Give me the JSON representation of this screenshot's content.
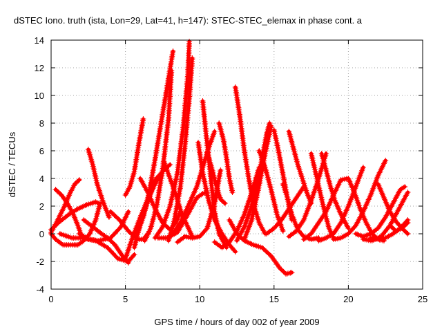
{
  "chart_data": {
    "type": "scatter",
    "title": "dSTEC Iono. truth (ista, Lon=29, Lat=41, h=147): STEC-STEC_elemax in phase cont. a",
    "xlabel": "GPS time / hours of day 002 of year 2009",
    "ylabel": "dSTEC  / TECUs",
    "xlim": [
      0,
      25
    ],
    "ylim": [
      -4,
      14
    ],
    "xticks": [
      0,
      5,
      10,
      15,
      20,
      25
    ],
    "yticks": [
      -4,
      -2,
      0,
      2,
      4,
      6,
      8,
      10,
      12,
      14
    ],
    "grid": true,
    "marker": "+",
    "color": "#ff0000",
    "series": [
      {
        "x": [
          0.0,
          0.3,
          0.8,
          1.3,
          1.8,
          2.2,
          2.6,
          3.0,
          3.3
        ],
        "y": [
          0.0,
          -0.4,
          -0.8,
          -0.8,
          -0.8,
          -0.5,
          0.0,
          1.0,
          2.2
        ]
      },
      {
        "x": [
          0.3,
          0.7,
          1.1,
          1.5,
          1.8,
          2.0
        ],
        "y": [
          3.2,
          2.8,
          2.2,
          1.4,
          0.6,
          0.0
        ]
      },
      {
        "x": [
          0.0,
          0.4,
          0.9,
          1.3,
          1.6,
          1.9
        ],
        "y": [
          0.1,
          0.9,
          2.0,
          3.0,
          3.6,
          3.9
        ]
      },
      {
        "x": [
          0.0,
          0.6,
          1.2,
          1.8,
          2.4,
          3.0,
          3.2
        ],
        "y": [
          0.3,
          0.9,
          1.4,
          1.8,
          2.1,
          2.3,
          2.2
        ]
      },
      {
        "x": [
          2.5,
          2.8,
          3.1,
          3.5,
          3.9
        ],
        "y": [
          6.1,
          5.0,
          3.6,
          2.3,
          1.2
        ]
      },
      {
        "x": [
          2.2,
          2.8,
          3.4,
          3.8,
          4.3,
          4.8,
          5.2
        ],
        "y": [
          1.0,
          0.5,
          0.0,
          -0.3,
          -0.8,
          -1.6,
          -2.1
        ]
      },
      {
        "x": [
          0.6,
          1.4,
          2.2,
          3.0,
          3.8,
          4.5,
          5.2,
          5.6
        ],
        "y": [
          0.0,
          -0.3,
          -0.3,
          -0.5,
          -1.0,
          -1.8,
          -2.0,
          -1.5
        ]
      },
      {
        "x": [
          1.9,
          2.5,
          3.2,
          4.0,
          4.7,
          5.2
        ],
        "y": [
          0.0,
          -0.4,
          -0.5,
          -0.3,
          0.5,
          1.6
        ]
      },
      {
        "x": [
          4.0,
          4.6,
          5.2,
          5.8,
          6.2,
          6.5
        ],
        "y": [
          1.6,
          1.0,
          0.2,
          -0.4,
          -0.4,
          0.0
        ]
      },
      {
        "x": [
          5.0,
          5.5,
          6.0,
          6.5,
          7.0,
          7.5
        ],
        "y": [
          -1.8,
          -0.2,
          1.2,
          2.5,
          3.6,
          4.5
        ]
      },
      {
        "x": [
          5.0,
          5.3,
          5.6,
          5.9,
          6.2
        ],
        "y": [
          2.8,
          3.4,
          4.5,
          6.5,
          8.3
        ]
      },
      {
        "x": [
          5.6,
          6.0,
          6.5,
          7.0,
          7.5,
          8.0
        ],
        "y": [
          -1.0,
          0.8,
          2.3,
          3.9,
          4.5,
          5.0
        ]
      },
      {
        "x": [
          6.0,
          6.5,
          7.0,
          7.5,
          8.0,
          8.4,
          8.7
        ],
        "y": [
          4.0,
          3.0,
          1.8,
          0.8,
          0.3,
          0.8,
          1.6
        ]
      },
      {
        "x": [
          5.8,
          6.2,
          6.6,
          7.0,
          7.4,
          7.8,
          8.2
        ],
        "y": [
          0.0,
          1.2,
          3.0,
          5.4,
          8.0,
          10.6,
          13.2
        ]
      },
      {
        "x": [
          6.3,
          6.7,
          7.1,
          7.5,
          7.9,
          8.1
        ],
        "y": [
          -0.5,
          0.4,
          2.0,
          4.6,
          8.3,
          11.8
        ]
      },
      {
        "x": [
          7.0,
          7.5,
          8.0,
          8.5,
          8.9,
          9.2,
          9.3
        ],
        "y": [
          -0.3,
          0.5,
          2.0,
          4.4,
          7.8,
          11.5,
          13.9
        ]
      },
      {
        "x": [
          7.9,
          8.3,
          8.7,
          9.0,
          9.3,
          9.5
        ],
        "y": [
          -0.5,
          1.0,
          3.4,
          6.3,
          9.8,
          12.7
        ]
      },
      {
        "x": [
          8.2,
          8.8,
          9.3,
          9.8,
          10.2,
          10.6,
          11.0
        ],
        "y": [
          0.0,
          1.0,
          2.2,
          3.4,
          4.8,
          6.2,
          7.4
        ]
      },
      {
        "x": [
          8.5,
          9.0,
          9.5,
          10.0,
          10.5,
          11.0,
          11.4
        ],
        "y": [
          -0.6,
          -0.2,
          -0.3,
          -0.2,
          0.4,
          2.2,
          4.6
        ]
      },
      {
        "x": [
          7.6,
          8.0,
          8.4,
          8.8,
          9.2,
          9.5
        ],
        "y": [
          5.2,
          4.0,
          2.8,
          1.4,
          0.5,
          -0.2
        ]
      },
      {
        "x": [
          7.2,
          7.8,
          8.5,
          9.2,
          9.8,
          10.2,
          10.5
        ],
        "y": [
          -0.3,
          -0.3,
          0.1,
          1.4,
          2.6,
          2.9,
          3.0
        ]
      },
      {
        "x": [
          10.2,
          10.4,
          10.6,
          10.8,
          11.0,
          11.3,
          11.8
        ],
        "y": [
          9.6,
          7.5,
          5.5,
          3.5,
          1.6,
          0.0,
          -1.0
        ]
      },
      {
        "x": [
          9.9,
          10.2,
          10.6,
          11.0,
          11.5,
          12.0,
          12.4
        ],
        "y": [
          6.6,
          4.4,
          2.4,
          1.0,
          0.0,
          -0.8,
          -1.3
        ]
      },
      {
        "x": [
          10.5,
          10.8,
          11.1,
          11.4,
          11.7
        ],
        "y": [
          5.9,
          4.8,
          3.5,
          2.5,
          2.2
        ]
      },
      {
        "x": [
          11.3,
          11.6,
          11.8,
          12.0,
          12.2
        ],
        "y": [
          8.0,
          6.8,
          5.5,
          4.0,
          3.0
        ]
      },
      {
        "x": [
          11.0,
          11.5,
          12.0,
          12.5,
          13.0,
          13.5,
          14.0
        ],
        "y": [
          -0.6,
          -1.0,
          -0.6,
          0.2,
          1.4,
          3.0,
          4.8
        ]
      },
      {
        "x": [
          12.4,
          12.7,
          13.0,
          13.3,
          13.6,
          14.0,
          14.4
        ],
        "y": [
          10.6,
          8.5,
          6.0,
          4.0,
          2.2,
          0.8,
          0.0
        ]
      },
      {
        "x": [
          12.0,
          12.5,
          13.0,
          13.6,
          14.2,
          14.8,
          15.4,
          15.8,
          16.2
        ],
        "y": [
          1.0,
          0.0,
          -0.5,
          -0.8,
          -1.0,
          -1.6,
          -2.5,
          -2.9,
          -2.8
        ]
      },
      {
        "x": [
          12.5,
          13.0,
          13.5,
          13.9,
          14.2,
          14.5,
          14.7
        ],
        "y": [
          -0.5,
          0.5,
          2.0,
          3.8,
          5.5,
          7.2,
          8.0
        ]
      },
      {
        "x": [
          13.0,
          13.5,
          14.0,
          14.4,
          14.8
        ],
        "y": [
          -0.4,
          1.0,
          3.5,
          5.8,
          7.8
        ]
      },
      {
        "x": [
          14.0,
          14.4,
          14.8,
          15.2,
          15.6
        ],
        "y": [
          6.0,
          4.8,
          3.2,
          1.4,
          0.2
        ]
      },
      {
        "x": [
          15.0,
          15.3,
          15.6,
          15.9,
          16.2
        ],
        "y": [
          7.5,
          6.0,
          4.3,
          2.6,
          1.0
        ]
      },
      {
        "x": [
          14.5,
          15.0,
          15.5,
          16.0,
          16.5,
          17.0
        ],
        "y": [
          0.0,
          0.4,
          1.0,
          1.8,
          2.6,
          3.4
        ]
      },
      {
        "x": [
          15.6,
          15.9,
          16.2,
          16.6,
          17.0,
          17.5,
          18.0
        ],
        "y": [
          3.6,
          2.6,
          1.4,
          0.3,
          -0.2,
          -0.4,
          -0.3
        ]
      },
      {
        "x": [
          16.0,
          16.3,
          16.6,
          16.9,
          17.2,
          17.5
        ],
        "y": [
          7.4,
          6.2,
          5.0,
          4.0,
          3.0,
          2.2
        ]
      },
      {
        "x": [
          16.0,
          16.5,
          17.0,
          17.5,
          18.0,
          18.5
        ],
        "y": [
          -0.2,
          0.2,
          1.0,
          2.4,
          4.0,
          5.8
        ]
      },
      {
        "x": [
          17.5,
          17.8,
          18.1,
          18.4,
          18.7,
          19.0
        ],
        "y": [
          5.8,
          4.4,
          3.0,
          1.6,
          0.4,
          -0.3
        ]
      },
      {
        "x": [
          17.0,
          17.5,
          18.0,
          18.5,
          19.0,
          19.5,
          20.0
        ],
        "y": [
          -0.4,
          0.0,
          0.8,
          1.6,
          2.8,
          3.9,
          4.0
        ]
      },
      {
        "x": [
          18.2,
          18.5,
          18.8,
          19.1,
          19.5,
          20.0
        ],
        "y": [
          5.8,
          4.6,
          3.4,
          2.4,
          1.4,
          0.4
        ]
      },
      {
        "x": [
          18.0,
          18.5,
          19.0,
          19.5,
          20.0,
          20.5,
          21.0
        ],
        "y": [
          -0.5,
          -0.3,
          0.0,
          0.8,
          2.0,
          3.4,
          4.8
        ]
      },
      {
        "x": [
          19.0,
          19.5,
          20.0,
          20.5,
          21.0,
          21.5,
          22.0,
          22.5
        ],
        "y": [
          -0.4,
          -0.3,
          0.0,
          0.6,
          1.6,
          2.8,
          4.2,
          5.3
        ]
      },
      {
        "x": [
          20.0,
          20.4,
          20.8,
          21.2,
          21.6,
          22.0,
          22.4
        ],
        "y": [
          4.0,
          3.0,
          1.8,
          0.8,
          0.0,
          -0.4,
          -0.5
        ]
      },
      {
        "x": [
          20.5,
          21.0,
          21.5,
          22.0,
          22.5,
          23.0,
          23.5,
          23.8
        ],
        "y": [
          0.0,
          -0.2,
          0.0,
          0.4,
          1.2,
          2.2,
          3.2,
          3.4
        ]
      },
      {
        "x": [
          21.0,
          21.6,
          22.2,
          22.8,
          23.4,
          24.0
        ],
        "y": [
          -0.4,
          -0.5,
          -0.2,
          0.6,
          1.8,
          3.0
        ]
      },
      {
        "x": [
          22.0,
          22.4,
          22.8,
          23.2,
          23.6,
          24.0
        ],
        "y": [
          3.6,
          2.6,
          1.6,
          0.9,
          0.4,
          0.0
        ]
      },
      {
        "x": [
          21.5,
          22.0,
          22.5,
          23.0,
          23.5,
          24.0
        ],
        "y": [
          -0.3,
          -0.4,
          -0.3,
          0.0,
          0.4,
          1.0
        ]
      },
      {
        "x": [
          22.8,
          23.2,
          23.6,
          24.0
        ],
        "y": [
          0.6,
          0.2,
          0.4,
          0.8
        ]
      }
    ]
  }
}
